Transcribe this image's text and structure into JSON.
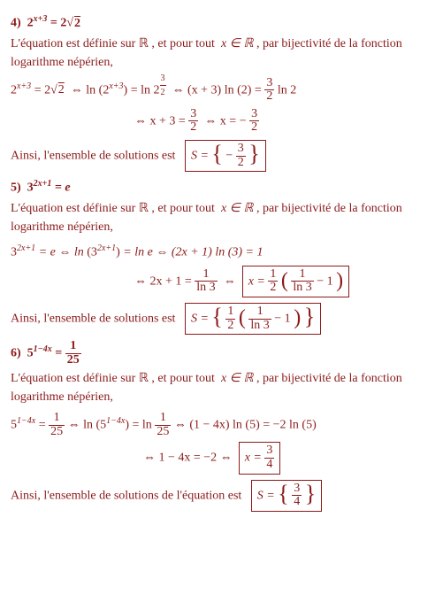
{
  "colors": {
    "text": "#8b1a1a",
    "background": "#ffffff",
    "border": "#8b1a1a"
  },
  "typography": {
    "font_family": "Times New Roman",
    "base_size_pt": 14
  },
  "common": {
    "defined_text_prefix": "L'équation est définie sur",
    "defined_text_mid": ", et pour tout",
    "defined_text_suffix": ", par bijectivité de la fonction  logarithme népérien,",
    "real_set": "ℝ",
    "x_in": "x ∈ ℝ",
    "concl_prefix": "Ainsi, l'ensemble de solutions est",
    "concl_prefix_eq": "Ainsi, l'ensemble de solutions de l'équation est"
  },
  "p4": {
    "num": "4)",
    "eq_lhs_base": "2",
    "eq_lhs_exp": "x+3",
    "eq_rhs_coeff": "2",
    "eq_rhs_root": "2",
    "line1_a": "2",
    "line1_a_exp": "x+3",
    "line1_a_rhs": "= 2√",
    "line1_b": "⇔ ln",
    "line1_b_inner_base": "2",
    "line1_b_inner_exp": "x+3",
    "line1_c": "= ln 2",
    "line1_c_exp_num": "3",
    "line1_c_exp_den": "2",
    "line1_d_lhs": "⇔ (x + 3) ln (2) =",
    "line1_d_frac_num": "3",
    "line1_d_frac_den": "2",
    "line1_d_tail": "ln 2",
    "line2_a": "⇔ x + 3 =",
    "line2_a_num": "3",
    "line2_a_den": "2",
    "line2_b": "⇔ x = −",
    "line2_b_num": "3",
    "line2_b_den": "2",
    "sol_label": "S =",
    "sol_neg": "−",
    "sol_num": "3",
    "sol_den": "2"
  },
  "p5": {
    "num": "5)",
    "eq_lhs_base": "3",
    "eq_lhs_exp": "2x+1",
    "eq_rhs": "= e",
    "line1_a_base": "3",
    "line1_a_exp": "2x+1",
    "line1_a_rhs": "= e ⇔ ln",
    "line1_b_inner_base": "3",
    "line1_b_inner_exp": "2x+1",
    "line1_c": "= ln e ⇔ (2x + 1) ln (3) = 1",
    "line2_a": "⇔ 2x + 1 =",
    "line2_a_num": "1",
    "line2_a_den": "ln 3",
    "line2_b": "⇔",
    "boxed_lhs": "x =",
    "boxed_outer_num": "1",
    "boxed_outer_den": "2",
    "boxed_inner_num": "1",
    "boxed_inner_den": "ln 3",
    "boxed_tail": "− 1",
    "sol_label": "S =",
    "sol_outer_num": "1",
    "sol_outer_den": "2",
    "sol_inner_num": "1",
    "sol_inner_den": "ln 3",
    "sol_tail": "− 1"
  },
  "p6": {
    "num": "6)",
    "eq_lhs_base": "5",
    "eq_lhs_exp": "1−4x",
    "eq_rhs_num": "1",
    "eq_rhs_den": "25",
    "line1_a_base": "5",
    "line1_a_exp": "1−4x",
    "line1_a_eq": "=",
    "line1_a_num": "1",
    "line1_a_den": "25",
    "line1_b": "⇔ ln",
    "line1_b_inner_base": "5",
    "line1_b_inner_exp": "1−4x",
    "line1_c": "= ln",
    "line1_c_num": "1",
    "line1_c_den": "25",
    "line1_d": "⇔  (1 − 4x) ln (5) = −2 ln (5)",
    "line2_a": "⇔ 1 − 4x = −2 ⇔",
    "boxed_lhs": "x =",
    "boxed_num": "3",
    "boxed_den": "4",
    "sol_label": "S =",
    "sol_num": "3",
    "sol_den": "4"
  }
}
